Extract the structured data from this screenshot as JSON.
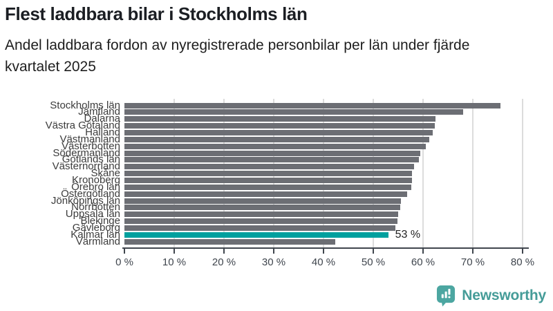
{
  "header": {
    "title": "Flest laddbara bilar i Stockholms län",
    "subtitle_lines": [
      "Andel laddbara fordon av nyregistrerade personbilar per län under fjärde",
      "kvartalet 2025"
    ]
  },
  "chart_data": {
    "type": "bar",
    "orientation": "horizontal",
    "title": "Flest laddbara bilar i Stockholms län",
    "subtitle": "Andel laddbara fordon av nyregistrerade personbilar per län under fjärde kvartalet 2025",
    "categories": [
      "Stockholms län",
      "Jämtland",
      "Dalarna",
      "Västra Götaland",
      "Halland",
      "Västmanland",
      "Västerbotten",
      "Södermanland",
      "Gotlands län",
      "Västernorrland",
      "Skåne",
      "Kronoberg",
      "Örebro län",
      "Östergötland",
      "Jönköpings län",
      "Norrbotten",
      "Uppsala län",
      "Blekinge",
      "Gävleborg",
      "Kalmar län",
      "Värmland"
    ],
    "values": [
      75.5,
      68,
      62.5,
      62.3,
      62,
      61.3,
      60.5,
      59.5,
      59.2,
      58.2,
      57.8,
      57.8,
      57.7,
      56.8,
      55.5,
      55.4,
      55,
      54.9,
      54.4,
      53,
      42.4
    ],
    "unit": "%",
    "xlim": [
      0,
      80
    ],
    "x_ticks": [
      "0 %",
      "10 %",
      "20 %",
      "30 %",
      "40 %",
      "50 %",
      "60 %",
      "70 %",
      "80 %"
    ],
    "grid": "vertical",
    "highlight": {
      "index": 19,
      "category": "Kalmar län",
      "label": "53 %"
    },
    "colors": {
      "bar": "#6c6e74",
      "highlight": "#00a09e",
      "gridline": "#dcdcdc",
      "axis": "#3f454d",
      "tick_label": "#3f454d",
      "category_label": "#3b3b3b",
      "annotation": "#1f1f1f"
    }
  },
  "footer": {
    "brand": "Newsworthy",
    "brand_color": "#459c98",
    "logo_color": "#4ca6a1",
    "logo_icon": "bar-chart-speech-bubble"
  }
}
